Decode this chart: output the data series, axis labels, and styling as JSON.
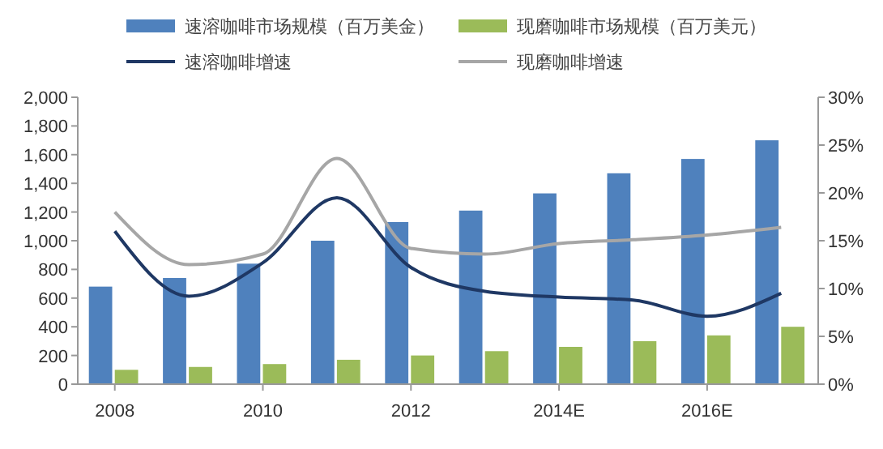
{
  "chart_data": {
    "type": "bar",
    "categories": [
      "2008",
      null,
      "2010",
      null,
      "2012",
      null,
      "2014E",
      null,
      "2016E",
      null
    ],
    "series": [
      {
        "name": "速溶咖啡市场规模（百万美金）",
        "color": "#4f81bd",
        "values": [
          680,
          740,
          840,
          1000,
          1130,
          1210,
          1330,
          1470,
          1570,
          1700
        ]
      },
      {
        "name": "现磨咖啡市场规模（百万美元）",
        "color": "#9bbb59",
        "values": [
          100,
          120,
          140,
          170,
          200,
          230,
          260,
          300,
          340,
          400
        ]
      },
      {
        "name": "速溶咖啡增速",
        "type": "line",
        "axis": "y2",
        "color": "#1f3864",
        "values": [
          16,
          9.2,
          12.7,
          19.5,
          12.2,
          9.7,
          9.1,
          8.8,
          7.1,
          9.5
        ]
      },
      {
        "name": "现磨咖啡增速",
        "type": "line",
        "axis": "y2",
        "color": "#a6a6a6",
        "values": [
          18,
          12.5,
          13.6,
          23.6,
          14.2,
          13.6,
          14.7,
          15.1,
          15.6,
          16.4
        ]
      }
    ],
    "ylim": [
      0,
      2000
    ],
    "yticks": [
      0,
      200,
      400,
      600,
      800,
      {
        "value": 1000,
        "label": "1,000"
      },
      {
        "value": 1200,
        "label": "1,200"
      },
      {
        "value": 1400,
        "label": "1,400"
      },
      {
        "value": 1600,
        "label": "1,600"
      },
      {
        "value": 1800,
        "label": "1,800"
      },
      {
        "value": 2000,
        "label": "2,000"
      }
    ],
    "y2lim": [
      0,
      30
    ],
    "y2ticks": [
      {
        "value": 0,
        "label": "0%"
      },
      {
        "value": 5,
        "label": "5%"
      },
      {
        "value": 10,
        "label": "10%"
      },
      {
        "value": 15,
        "label": "15%"
      },
      {
        "value": 20,
        "label": "20%"
      },
      {
        "value": 25,
        "label": "25%"
      },
      {
        "value": 30,
        "label": "30%"
      }
    ],
    "legend": "top",
    "grid": false,
    "marker": "none",
    "line_style": "solid"
  }
}
